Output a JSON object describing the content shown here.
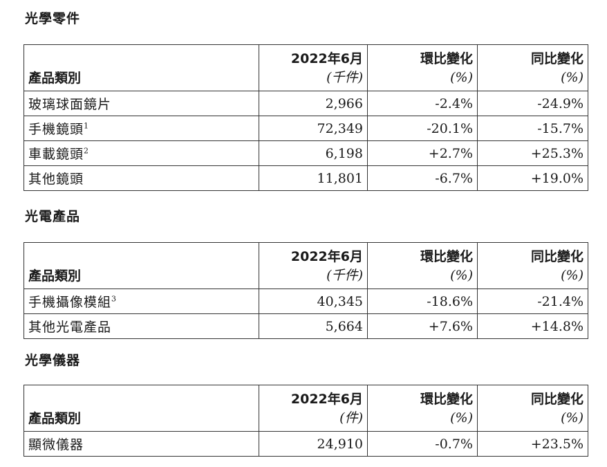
{
  "sections": [
    {
      "title": "光學零件",
      "header": {
        "category": "產品類別",
        "col1": "2022年6月",
        "col1_unit": "(千件)",
        "col2": "環比變化",
        "col2_unit": "(%)",
        "col3": "同比變化",
        "col3_unit": "(%)"
      },
      "rows": [
        {
          "name": "玻璃球面鏡片",
          "sup": "",
          "value": "2,966",
          "mom": "-2.4%",
          "yoy": "-24.9%"
        },
        {
          "name": "手機鏡頭",
          "sup": "1",
          "value": "72,349",
          "mom": "-20.1%",
          "yoy": "-15.7%"
        },
        {
          "name": "車載鏡頭",
          "sup": "2",
          "value": "6,198",
          "mom": "+2.7%",
          "yoy": "+25.3%"
        },
        {
          "name": "其他鏡頭",
          "sup": "",
          "value": "11,801",
          "mom": "-6.7%",
          "yoy": "+19.0%"
        }
      ]
    },
    {
      "title": "光電產品",
      "header": {
        "category": "產品類別",
        "col1": "2022年6月",
        "col1_unit": "(千件)",
        "col2": "環比變化",
        "col2_unit": "(%)",
        "col3": "同比變化",
        "col3_unit": "(%)"
      },
      "rows": [
        {
          "name": "手機攝像模組",
          "sup": "3",
          "value": "40,345",
          "mom": "-18.6%",
          "yoy": "-21.4%"
        },
        {
          "name": "其他光電產品",
          "sup": "",
          "value": "5,664",
          "mom": "+7.6%",
          "yoy": "+14.8%"
        }
      ]
    },
    {
      "title": "光學儀器",
      "header": {
        "category": "產品類別",
        "col1": "2022年6月",
        "col1_unit": "(件)",
        "col2": "環比變化",
        "col2_unit": "(%)",
        "col3": "同比變化",
        "col3_unit": "(%)"
      },
      "rows": [
        {
          "name": "顯微儀器",
          "sup": "",
          "value": "24,910",
          "mom": "-0.7%",
          "yoy": "+23.5%"
        }
      ]
    }
  ]
}
